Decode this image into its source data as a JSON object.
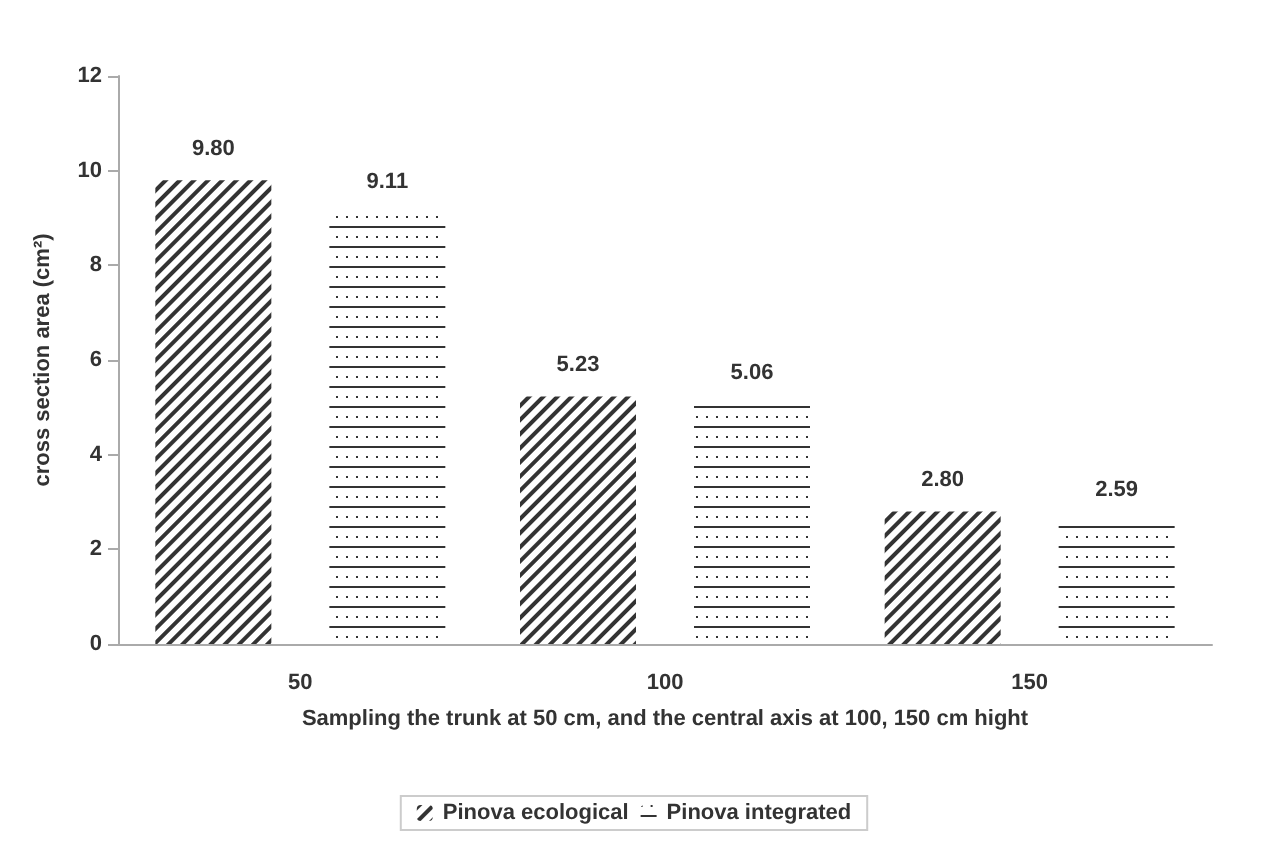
{
  "chart_data": {
    "type": "bar",
    "xlabel": "Sampling the trunk at 50 cm, and the central axis at 100, 150 cm hight",
    "ylabel": "cross section area (cm²)",
    "categories": [
      "50",
      "100",
      "150"
    ],
    "series": [
      {
        "name": "Pinova ecological",
        "color": "#333333",
        "values": [
          9.8,
          5.23,
          2.8
        ],
        "value_labels": [
          "9.80",
          "5.23",
          "2.80"
        ]
      },
      {
        "name": "Pinova integrated",
        "color": "#333333",
        "values": [
          9.11,
          5.06,
          2.59
        ],
        "value_labels": [
          "9.11",
          "5.06",
          "2.59"
        ]
      }
    ],
    "ylim": [
      0,
      12
    ],
    "yticks": [
      0,
      2,
      4,
      6,
      8,
      10,
      12
    ],
    "grid": false,
    "legend": "bottom"
  }
}
